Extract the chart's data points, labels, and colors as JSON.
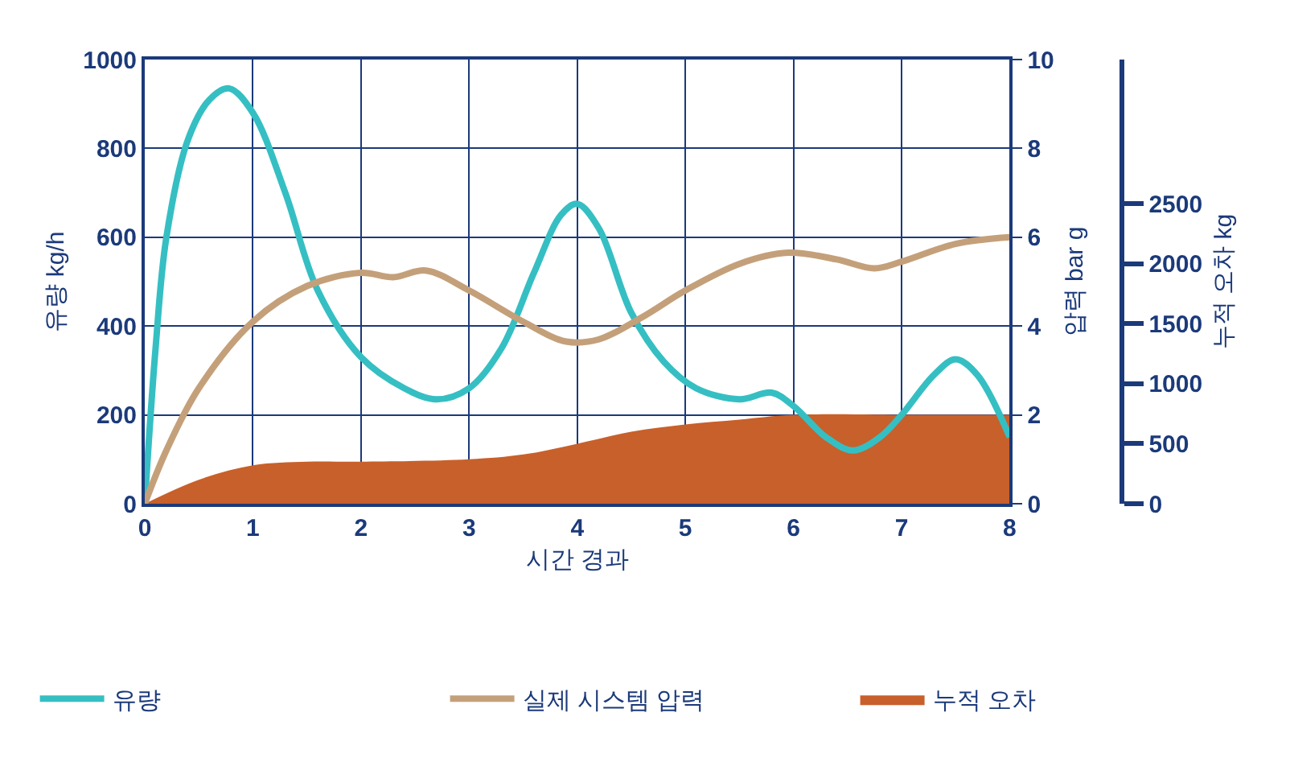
{
  "chart_data": {
    "type": "line",
    "xlabel": "시간 경과",
    "ylabel": "유량 kg/h",
    "y2label": "압력 bar g",
    "y3label": "누적 오차 kg",
    "xlim": [
      0,
      8
    ],
    "xticks": [
      0,
      1,
      2,
      3,
      4,
      5,
      6,
      7,
      8
    ],
    "ylim": [
      0,
      1000
    ],
    "yticks": [
      0,
      200,
      400,
      600,
      800,
      1000
    ],
    "y2lim": [
      0,
      10
    ],
    "y2ticks": [
      0,
      2,
      4,
      6,
      8,
      10
    ],
    "y3lim": [
      0,
      3700
    ],
    "y3ticks": [
      0,
      500,
      1000,
      1500,
      2000,
      2500
    ],
    "grid": true,
    "legend": "bottom",
    "line_style": "solid",
    "marker": "none",
    "series": [
      {
        "name": "유량",
        "color": "#35bfc3",
        "x": [
          0,
          0.1,
          0.2,
          0.4,
          0.6,
          0.78,
          1.0,
          1.3,
          1.6,
          2.0,
          2.4,
          2.7,
          3.0,
          3.3,
          3.6,
          3.85,
          4.0,
          4.2,
          4.5,
          4.8,
          5.1,
          5.5,
          5.8,
          6.0,
          6.3,
          6.55,
          6.8,
          7.0,
          7.3,
          7.5,
          7.7,
          8.0
        ],
        "values": [
          0,
          350,
          600,
          820,
          910,
          935,
          880,
          700,
          480,
          330,
          260,
          235,
          260,
          350,
          520,
          650,
          675,
          620,
          430,
          320,
          260,
          235,
          250,
          220,
          150,
          120,
          150,
          200,
          290,
          325,
          290,
          150
        ]
      },
      {
        "name": "실제 시스템 압력",
        "axis": "y2",
        "color": "#c4a07a",
        "x": [
          0,
          0.2,
          0.5,
          1,
          1.5,
          2,
          2.3,
          2.6,
          3,
          3.5,
          3.9,
          4.2,
          4.6,
          5,
          5.5,
          5.95,
          6.4,
          6.75,
          7,
          7.5,
          8
        ],
        "values": [
          0,
          1.2,
          2.6,
          4.1,
          4.9,
          5.2,
          5.1,
          5.25,
          4.8,
          4.1,
          3.65,
          3.7,
          4.2,
          4.8,
          5.4,
          5.65,
          5.5,
          5.3,
          5.45,
          5.85,
          6.0
        ]
      },
      {
        "name": "누적 오차",
        "type": "area",
        "axis": "y3",
        "color": "#c8602b",
        "x": [
          0,
          0.5,
          1,
          1.5,
          2,
          3,
          3.5,
          4,
          4.5,
          5,
          5.5,
          6,
          7,
          8
        ],
        "values": [
          0,
          200,
          320,
          350,
          350,
          370,
          410,
          500,
          600,
          660,
          700,
          740,
          740,
          740
        ]
      }
    ]
  }
}
